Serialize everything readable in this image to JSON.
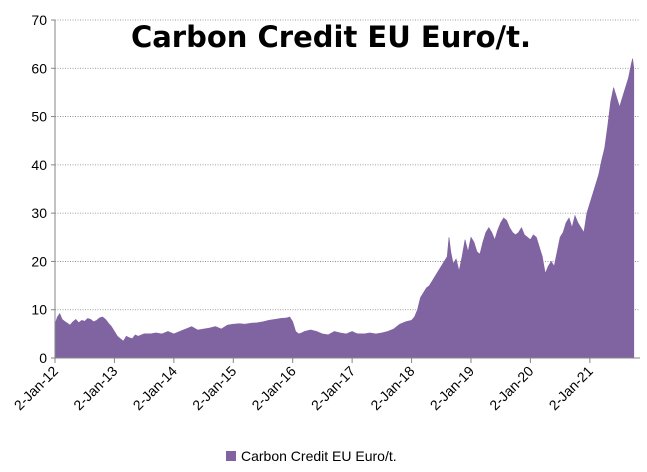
{
  "chart_data": {
    "type": "area",
    "title": "Carbon Credit EU Euro/t.",
    "xlabel": "",
    "ylabel": "",
    "ylim": [
      0,
      70
    ],
    "yticks": [
      0,
      10,
      20,
      30,
      40,
      50,
      60,
      70
    ],
    "xticks": [
      "2-Jan-12",
      "2-Jan-13",
      "2-Jan-14",
      "2-Jan-15",
      "2-Jan-16",
      "2-Jan-17",
      "2-Jan-18",
      "2-Jan-19",
      "2-Jan-20",
      "2-Jan-21"
    ],
    "grid": "horizontal-dotted",
    "legend": {
      "placement": "bottom",
      "label": "Carbon Credit EU Euro/t."
    },
    "colors": {
      "fill": "#8064A2",
      "grid": "#808080",
      "axis": "#868686"
    },
    "series": [
      {
        "name": "Carbon Credit EU Euro/t.",
        "x": [
          2012.0,
          2012.04,
          2012.08,
          2012.12,
          2012.17,
          2012.21,
          2012.25,
          2012.3,
          2012.35,
          2012.4,
          2012.45,
          2012.5,
          2012.55,
          2012.6,
          2012.65,
          2012.7,
          2012.75,
          2012.8,
          2012.85,
          2012.9,
          2012.95,
          2013.0,
          2013.05,
          2013.1,
          2013.15,
          2013.2,
          2013.25,
          2013.3,
          2013.35,
          2013.4,
          2013.5,
          2013.6,
          2013.7,
          2013.8,
          2013.9,
          2014.0,
          2014.1,
          2014.2,
          2014.3,
          2014.4,
          2014.5,
          2014.6,
          2014.7,
          2014.8,
          2014.9,
          2015.0,
          2015.1,
          2015.2,
          2015.3,
          2015.4,
          2015.5,
          2015.6,
          2015.7,
          2015.8,
          2015.9,
          2015.95,
          2016.0,
          2016.05,
          2016.1,
          2016.15,
          2016.2,
          2016.3,
          2016.4,
          2016.5,
          2016.6,
          2016.7,
          2016.8,
          2016.9,
          2017.0,
          2017.05,
          2017.1,
          2017.2,
          2017.3,
          2017.4,
          2017.5,
          2017.6,
          2017.7,
          2017.8,
          2017.9,
          2018.0,
          2018.05,
          2018.1,
          2018.15,
          2018.2,
          2018.25,
          2018.3,
          2018.35,
          2018.4,
          2018.45,
          2018.5,
          2018.55,
          2018.6,
          2018.63,
          2018.66,
          2018.7,
          2018.75,
          2018.8,
          2018.85,
          2018.9,
          2018.95,
          2019.0,
          2019.05,
          2019.1,
          2019.15,
          2019.2,
          2019.25,
          2019.3,
          2019.35,
          2019.4,
          2019.45,
          2019.5,
          2019.55,
          2019.6,
          2019.65,
          2019.7,
          2019.75,
          2019.8,
          2019.85,
          2019.9,
          2019.95,
          2020.0,
          2020.05,
          2020.1,
          2020.15,
          2020.2,
          2020.25,
          2020.3,
          2020.35,
          2020.4,
          2020.45,
          2020.5,
          2020.55,
          2020.6,
          2020.65,
          2020.7,
          2020.75,
          2020.8,
          2020.85,
          2020.9,
          2020.95,
          2021.0,
          2021.05,
          2021.1,
          2021.15,
          2021.2,
          2021.25,
          2021.3,
          2021.35,
          2021.4,
          2021.45,
          2021.5,
          2021.55,
          2021.6,
          2021.65,
          2021.7,
          2021.72,
          2021.74
        ],
        "y": [
          7.0,
          8.5,
          9.2,
          8.0,
          7.5,
          7.2,
          6.8,
          7.5,
          8.0,
          7.3,
          7.8,
          7.6,
          8.2,
          8.0,
          7.5,
          7.8,
          8.3,
          8.5,
          8.0,
          7.2,
          6.5,
          5.5,
          4.5,
          4.0,
          3.5,
          4.5,
          4.2,
          4.0,
          4.8,
          4.5,
          5.0,
          5.0,
          5.2,
          5.0,
          5.5,
          5.0,
          5.5,
          6.0,
          6.5,
          5.8,
          6.0,
          6.2,
          6.5,
          6.0,
          6.8,
          7.0,
          7.1,
          7.0,
          7.2,
          7.3,
          7.5,
          7.8,
          8.0,
          8.2,
          8.3,
          8.5,
          7.5,
          5.5,
          5.0,
          5.2,
          5.5,
          5.8,
          5.5,
          5.0,
          4.8,
          5.5,
          5.2,
          5.0,
          5.5,
          5.2,
          5.0,
          5.0,
          5.2,
          5.0,
          5.2,
          5.5,
          6.0,
          7.0,
          7.5,
          7.8,
          8.5,
          10.0,
          12.5,
          13.5,
          14.5,
          15.0,
          16.0,
          17.0,
          18.0,
          19.0,
          20.0,
          21.0,
          25.0,
          22.0,
          19.5,
          20.5,
          18.0,
          21.0,
          24.5,
          22.0,
          25.0,
          24.0,
          22.0,
          21.5,
          24.0,
          26.0,
          27.0,
          26.0,
          24.5,
          26.5,
          28.0,
          29.0,
          28.5,
          27.0,
          26.0,
          25.5,
          26.0,
          27.0,
          25.5,
          25.0,
          24.5,
          25.5,
          25.0,
          23.0,
          21.0,
          17.5,
          19.0,
          20.0,
          19.0,
          22.0,
          25.0,
          26.0,
          28.0,
          29.0,
          27.0,
          29.5,
          28.0,
          27.0,
          26.0,
          30.0,
          32.0,
          34.0,
          36.0,
          38.0,
          41.0,
          43.5,
          48.0,
          53.0,
          56.0,
          54.0,
          52.0,
          54.0,
          56.0,
          58.0,
          61.0,
          62.0,
          60.0
        ]
      }
    ]
  }
}
